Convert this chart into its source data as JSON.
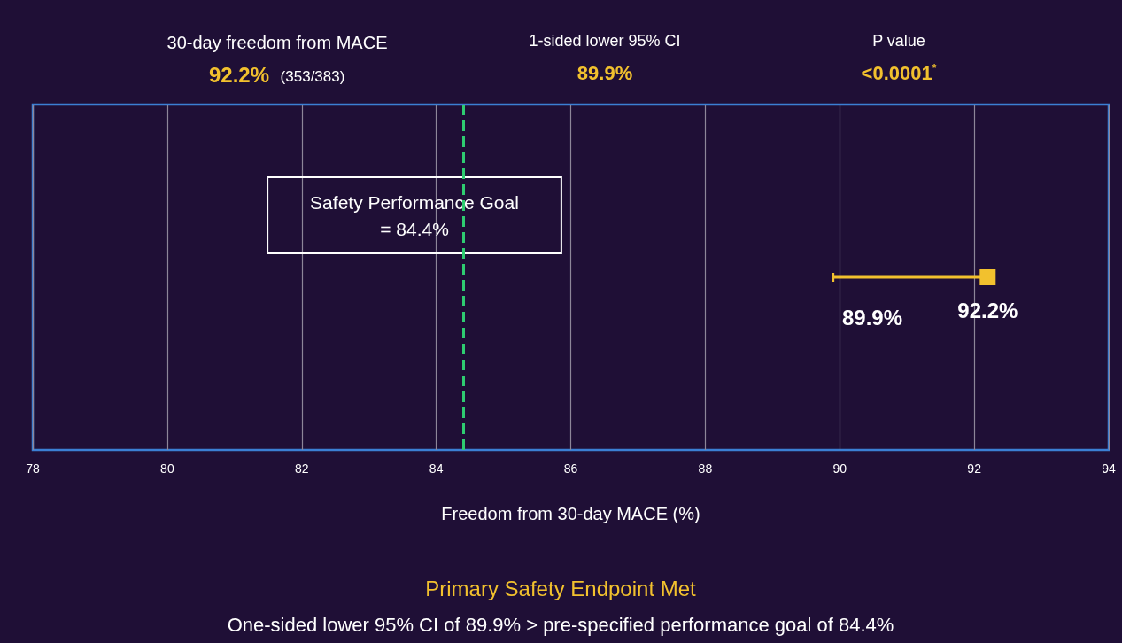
{
  "chart_data": {
    "type": "scatter",
    "orientation": "horizontal",
    "categories": [
      null
    ],
    "series": [
      {
        "color": "#f2c12e",
        "values": [
          92.2
        ],
        "errors": [
          [
            89.9,
            92.2
          ]
        ],
        "value_labels": [
          "92.2%"
        ]
      }
    ],
    "marker": "square",
    "xlim": [
      78,
      94
    ],
    "xticks": [
      78,
      80,
      82,
      84,
      86,
      88,
      90,
      92,
      94
    ],
    "grid": "x",
    "xlabel": "Freedom from 30-day MACE (%)",
    "ref_lines": [
      {
        "axis": "x",
        "value": 84.4,
        "label": "Safety Performance Goal\n= 84.4%",
        "color": "#2ecc71",
        "line_style": "dashed"
      }
    ],
    "annotations": [
      "30-day freedom from MACE",
      "92.2%",
      "(353/383)",
      "1-sided lower 95% CI",
      "89.9%",
      "P value",
      "<0.0001$^{*}$",
      "89.9%",
      "Primary Safety Endpoint Met",
      "One-sided lower 95% CI of 89.9% > pre-specified performance goal of 84.4%"
    ]
  }
}
